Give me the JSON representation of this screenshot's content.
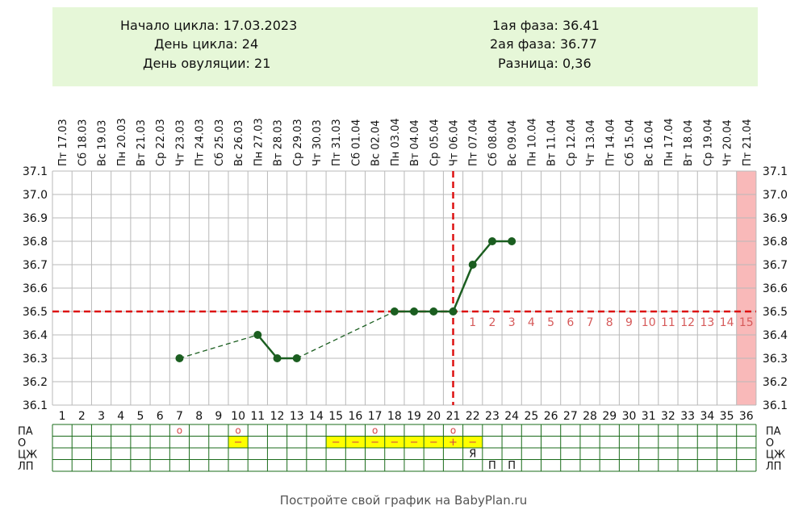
{
  "info": {
    "cycle_start": "Начало цикла: 17.03.2023",
    "cycle_day": "День цикла: 24",
    "ovulation_day": "День овуляции: 21",
    "phase1": "1ая фаза: 36.41",
    "phase2": "2ая фаза: 36.77",
    "difference": "Разница: 0,36"
  },
  "footer": "Постройте свой график на BabyPlan.ru",
  "colors": {
    "grid": "#b9b9b9",
    "table_grid": "#1a6b1a",
    "series": "#1b5e20",
    "cover_line": "#dd1111",
    "highlight": "#f9b9b9",
    "marker_o": "#ffff00",
    "phase_number": "#d65a5a"
  },
  "chart_data": {
    "type": "line",
    "dates": [
      "17.03",
      "18.03",
      "19.03",
      "20.03",
      "21.03",
      "22.03",
      "23.03",
      "24.03",
      "25.03",
      "26.03",
      "27.03",
      "28.03",
      "29.03",
      "30.03",
      "31.03",
      "01.04",
      "02.04",
      "03.04",
      "04.04",
      "05.04",
      "06.04",
      "07.04",
      "08.04",
      "09.04",
      "10.04",
      "11.04",
      "12.04",
      "13.04",
      "14.04",
      "15.04",
      "16.04",
      "17.04",
      "18.04",
      "19.04",
      "20.04",
      "21.04"
    ],
    "weekdays": [
      "Пт",
      "Сб",
      "Вс",
      "Пн",
      "Вт",
      "Ср",
      "Чт",
      "Пт",
      "Сб",
      "Вс",
      "Пн",
      "Вт",
      "Ср",
      "Чт",
      "Пт",
      "Сб",
      "Вс",
      "Пн",
      "Вт",
      "Ср",
      "Чт",
      "Пт",
      "Сб",
      "Вс",
      "Пн",
      "Вт",
      "Ср",
      "Чт",
      "Пт",
      "Сб",
      "Вс",
      "Пн",
      "Вт",
      "Ср",
      "Чт",
      "Пт"
    ],
    "days": [
      1,
      2,
      3,
      4,
      5,
      6,
      7,
      8,
      9,
      10,
      11,
      12,
      13,
      14,
      15,
      16,
      17,
      18,
      19,
      20,
      21,
      22,
      23,
      24,
      25,
      26,
      27,
      28,
      29,
      30,
      31,
      32,
      33,
      34,
      35,
      36
    ],
    "y_ticks": [
      "37.1",
      "37.0",
      "36.9",
      "36.8",
      "36.7",
      "36.6",
      "36.5",
      "36.4",
      "36.3",
      "36.2",
      "36.1"
    ],
    "ylim": [
      36.1,
      37.1
    ],
    "series": [
      {
        "points": [
          [
            7,
            36.3
          ],
          [
            11,
            36.4
          ],
          [
            12,
            36.3
          ],
          [
            13,
            36.3
          ],
          [
            18,
            36.5
          ],
          [
            19,
            36.5
          ],
          [
            20,
            36.5
          ],
          [
            21,
            36.5
          ],
          [
            22,
            36.7
          ],
          [
            23,
            36.8
          ],
          [
            24,
            36.8
          ]
        ]
      }
    ],
    "dashed_gaps": [
      [
        7,
        11
      ],
      [
        13,
        18
      ]
    ],
    "cover_line": 36.5,
    "ovulation_day": 21,
    "highlight_day": 36,
    "phase_numbers": {
      "start_day": 22,
      "labels": [
        "1",
        "2",
        "3",
        "4",
        "5",
        "6",
        "7",
        "8",
        "9",
        "10",
        "11",
        "12",
        "13",
        "14",
        "15"
      ]
    },
    "table_rows": [
      {
        "label": "ПА",
        "cells": [
          [
            7,
            "o"
          ],
          [
            10,
            "o"
          ],
          [
            17,
            "o"
          ],
          [
            21,
            "o"
          ]
        ]
      },
      {
        "label": "О",
        "cells": [
          [
            10,
            "−"
          ],
          [
            15,
            "−"
          ],
          [
            16,
            "−"
          ],
          [
            17,
            "−"
          ],
          [
            18,
            "−"
          ],
          [
            19,
            "−"
          ],
          [
            20,
            "−"
          ],
          [
            21,
            "+"
          ],
          [
            22,
            "−"
          ]
        ]
      },
      {
        "label": "ЦЖ",
        "cells": [
          [
            22,
            "Я"
          ]
        ]
      },
      {
        "label": "ЛП",
        "cells": [
          [
            23,
            "П"
          ],
          [
            24,
            "П"
          ]
        ]
      }
    ]
  }
}
